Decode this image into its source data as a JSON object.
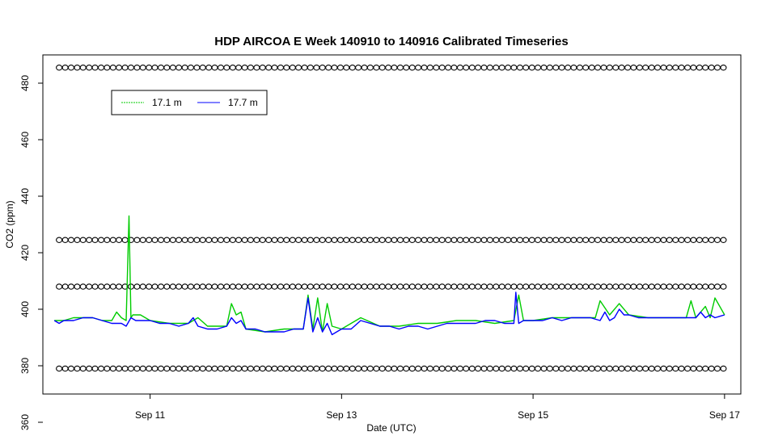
{
  "chart_data": {
    "type": "line",
    "title": "HDP AIRCOA E  Week 140910 to 140916  Calibrated Timeseries",
    "xlabel": "Date (UTC)",
    "ylabel": "CO2 (ppm)",
    "xlim_days": [
      9.88,
      17.17
    ],
    "ylim": [
      370,
      490
    ],
    "x_ticks": [
      {
        "day": 11,
        "label": "Sep 11"
      },
      {
        "day": 13,
        "label": "Sep 13"
      },
      {
        "day": 15,
        "label": "Sep 15"
      },
      {
        "day": 17,
        "label": "Sep 17"
      }
    ],
    "y_ticks": [
      {
        "value": 360,
        "label": "360"
      },
      {
        "value": 380,
        "label": "380"
      },
      {
        "value": 400,
        "label": "400"
      },
      {
        "value": 420,
        "label": "420"
      },
      {
        "value": 440,
        "label": "440"
      },
      {
        "value": 460,
        "label": "460"
      },
      {
        "value": 480,
        "label": "480"
      }
    ],
    "legend": {
      "placement": "top-left",
      "entries": [
        {
          "label": "17.1 m",
          "color": "#00cc00"
        },
        {
          "label": "17.7 m",
          "color": "#0000ff"
        }
      ]
    },
    "calibration_levels_ppm": [
      485.5,
      424.5,
      408,
      379
    ],
    "calibration_marker_spacing_hours": 3,
    "series": [
      {
        "name": "17.1 m",
        "color": "#00cc00",
        "x_days": [
          10.0,
          10.1,
          10.2,
          10.3,
          10.4,
          10.5,
          10.6,
          10.65,
          10.7,
          10.75,
          10.78,
          10.8,
          10.82,
          10.85,
          10.9,
          11.0,
          11.2,
          11.4,
          11.5,
          11.6,
          11.8,
          11.85,
          11.9,
          11.95,
          12.0,
          12.2,
          12.4,
          12.6,
          12.65,
          12.7,
          12.75,
          12.8,
          12.85,
          12.9,
          13.0,
          13.2,
          13.4,
          13.6,
          13.8,
          14.0,
          14.2,
          14.4,
          14.6,
          14.8,
          14.85,
          14.9,
          15.0,
          15.2,
          15.4,
          15.6,
          15.65,
          15.7,
          15.8,
          15.9,
          16.0,
          16.2,
          16.4,
          16.6,
          16.65,
          16.7,
          16.8,
          16.85,
          16.9,
          17.0
        ],
        "values": [
          396,
          396,
          397,
          397,
          397,
          396,
          396,
          399,
          397,
          396,
          433,
          397,
          398,
          398,
          398,
          396,
          395,
          395,
          397,
          394,
          394,
          402,
          398,
          399,
          393,
          392,
          393,
          393,
          405,
          393,
          404,
          392,
          402,
          394,
          393,
          397,
          394,
          394,
          395,
          395,
          396,
          396,
          395,
          396,
          405,
          396,
          396,
          397,
          397,
          397,
          397,
          403,
          398,
          402,
          398,
          397,
          397,
          397,
          403,
          397,
          401,
          397,
          404,
          398
        ]
      },
      {
        "name": "17.7 m",
        "color": "#0000ff",
        "x_days": [
          10.0,
          10.05,
          10.1,
          10.2,
          10.3,
          10.4,
          10.5,
          10.6,
          10.7,
          10.75,
          10.8,
          10.85,
          10.9,
          11.0,
          11.1,
          11.2,
          11.3,
          11.4,
          11.45,
          11.5,
          11.6,
          11.7,
          11.8,
          11.85,
          11.9,
          11.95,
          12.0,
          12.1,
          12.2,
          12.3,
          12.4,
          12.5,
          12.55,
          12.6,
          12.65,
          12.7,
          12.75,
          12.8,
          12.85,
          12.9,
          13.0,
          13.1,
          13.2,
          13.3,
          13.4,
          13.5,
          13.6,
          13.7,
          13.8,
          13.9,
          14.0,
          14.1,
          14.2,
          14.3,
          14.4,
          14.5,
          14.6,
          14.7,
          14.8,
          14.82,
          14.85,
          14.9,
          15.0,
          15.1,
          15.2,
          15.3,
          15.4,
          15.5,
          15.6,
          15.7,
          15.75,
          15.8,
          15.85,
          15.9,
          15.95,
          16.0,
          16.1,
          16.2,
          16.3,
          16.4,
          16.5,
          16.6,
          16.65,
          16.7,
          16.75,
          16.8,
          16.85,
          16.9,
          17.0
        ],
        "values": [
          396,
          395,
          396,
          396,
          397,
          397,
          396,
          395,
          395,
          394,
          397,
          396,
          396,
          396,
          395,
          395,
          394,
          395,
          397,
          394,
          393,
          393,
          394,
          397,
          395,
          396,
          393,
          393,
          392,
          392,
          392,
          393,
          393,
          393,
          404,
          392,
          397,
          392,
          395,
          391,
          393,
          393,
          396,
          395,
          394,
          394,
          393,
          394,
          394,
          393,
          394,
          395,
          395,
          395,
          395,
          396,
          396,
          395,
          395,
          406,
          395,
          396,
          396,
          396,
          397,
          396,
          397,
          397,
          397,
          396,
          399,
          396,
          397,
          400,
          398,
          398,
          397,
          397,
          397,
          397,
          397,
          397,
          397,
          397,
          399,
          397,
          398,
          397,
          398
        ]
      }
    ]
  }
}
